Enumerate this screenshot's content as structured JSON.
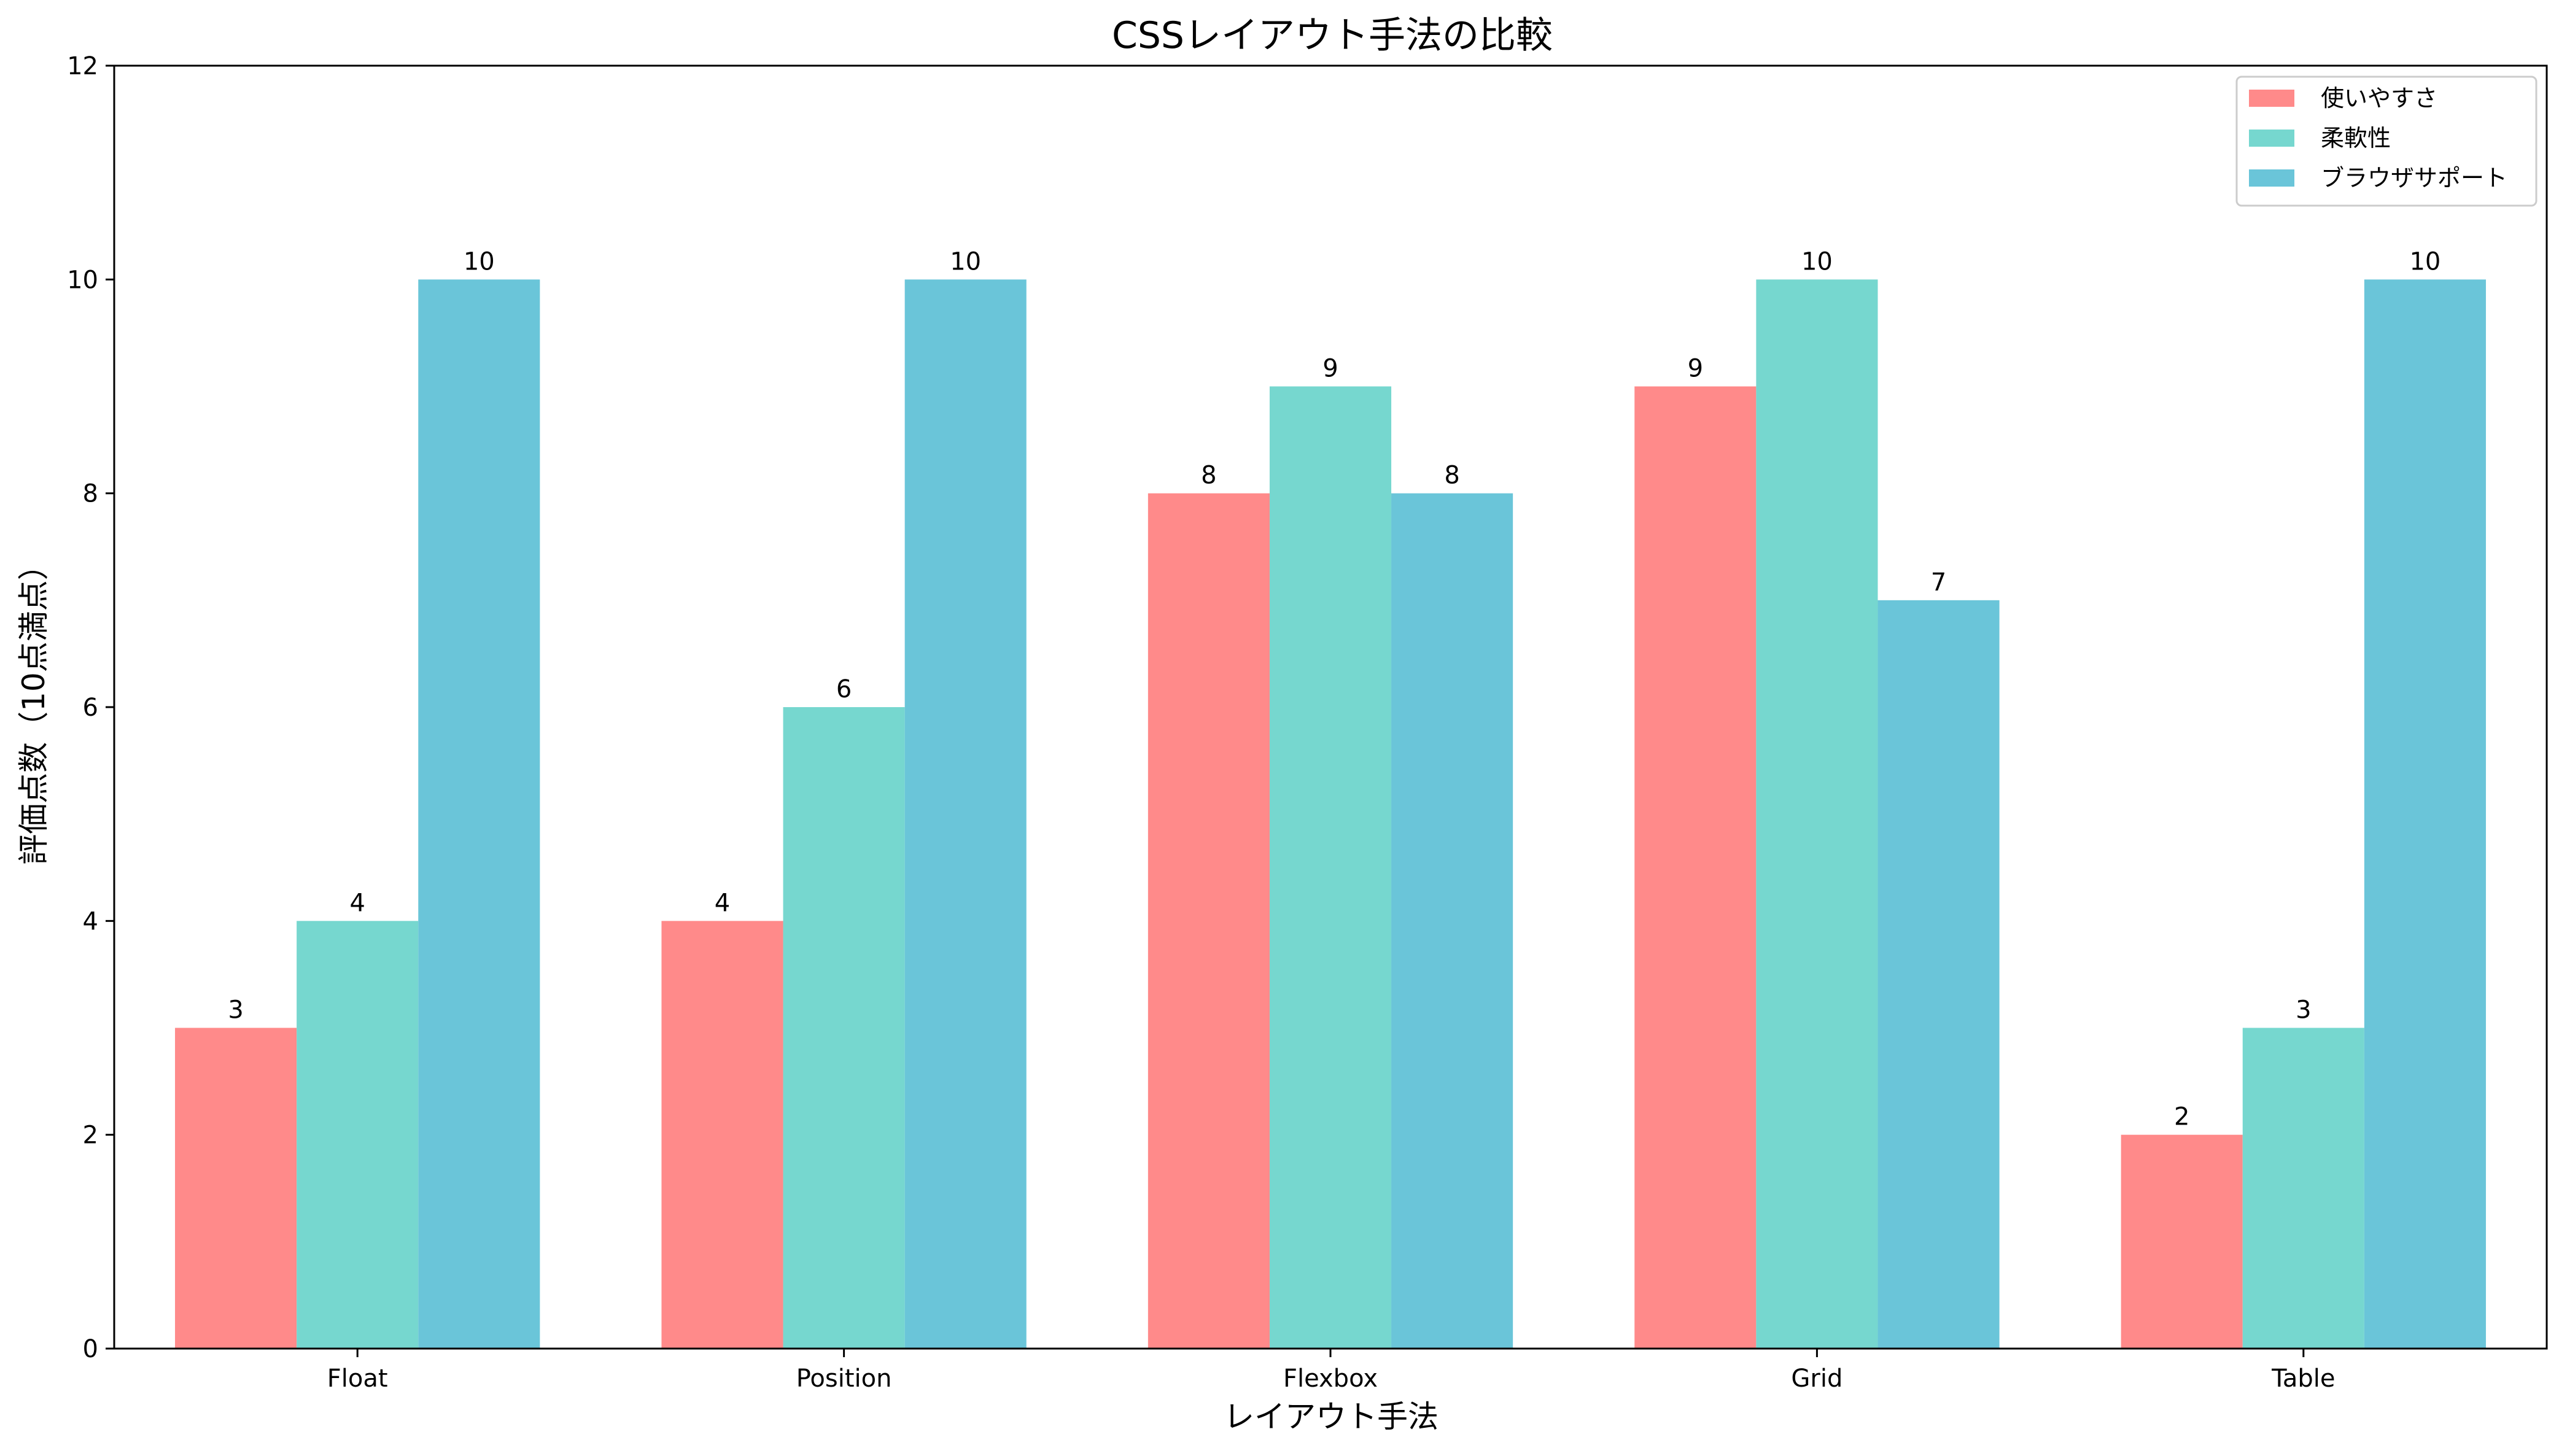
{
  "chart_data": {
    "type": "bar",
    "title": "CSSレイアウト手法の比較",
    "xlabel": "レイアウト手法",
    "ylabel": "評価点数（10点満点）",
    "ylim": [
      0,
      12
    ],
    "yticks": [
      0,
      2,
      4,
      6,
      8,
      10,
      12
    ],
    "grid": false,
    "legend_position": "top-right",
    "categories": [
      "Float",
      "Position",
      "Flexbox",
      "Grid",
      "Table"
    ],
    "series": [
      {
        "name": "使いやすさ",
        "color": "#FF8A8A",
        "values": [
          3,
          4,
          8,
          9,
          2
        ]
      },
      {
        "name": "柔軟性",
        "color": "#76D7CF",
        "values": [
          4,
          6,
          9,
          10,
          3
        ]
      },
      {
        "name": "ブラウザサポート",
        "color": "#6AC5D9",
        "values": [
          10,
          10,
          8,
          7,
          10
        ]
      }
    ]
  }
}
